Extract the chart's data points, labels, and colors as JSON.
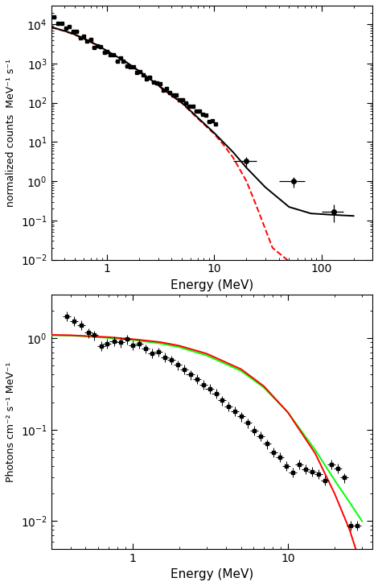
{
  "top_plot": {
    "ylabel": "normalized counts  MeV⁻¹ s⁻¹",
    "xlabel": "Energy (MeV)",
    "xlim": [
      0.3,
      300
    ],
    "ylim": [
      0.01,
      30000.0
    ],
    "fit_black_x": [
      0.3,
      0.4,
      0.5,
      0.6,
      0.8,
      1.0,
      1.5,
      2.0,
      3.0,
      5.0,
      7.0,
      10.0,
      15.0,
      20.0,
      30.0,
      50.0,
      80.0,
      120.0,
      200.0
    ],
    "fit_black_y": [
      8500,
      6800,
      5500,
      4400,
      3000,
      2100,
      1100,
      640,
      280,
      100,
      42,
      17,
      5.5,
      2.2,
      0.7,
      0.22,
      0.15,
      0.14,
      0.13
    ],
    "fit_red_x": [
      0.3,
      0.4,
      0.5,
      0.6,
      0.8,
      1.0,
      1.5,
      2.0,
      3.0,
      5.0,
      7.0,
      10.0,
      12.0,
      15.0,
      20.0,
      25.0,
      35.0,
      50.0
    ],
    "fit_red_y": [
      8400,
      6700,
      5400,
      4300,
      2950,
      2050,
      1080,
      620,
      270,
      97,
      40,
      16,
      9.0,
      4.0,
      1.0,
      0.22,
      0.02,
      0.009
    ]
  },
  "bottom_plot": {
    "ylabel": "Photons cm⁻² s⁻¹ MeV⁻¹",
    "xlabel": "Energy (MeV)",
    "xlim": [
      0.3,
      35
    ],
    "ylim": [
      0.005,
      3
    ],
    "fit_red_x": [
      0.3,
      0.4,
      0.5,
      0.7,
      1.0,
      1.5,
      2.0,
      3.0,
      5.0,
      7.0,
      10.0,
      15.0,
      20.0,
      25.0,
      30.0
    ],
    "fit_red_y": [
      1.09,
      1.08,
      1.06,
      1.03,
      0.98,
      0.91,
      0.83,
      0.68,
      0.46,
      0.3,
      0.155,
      0.055,
      0.02,
      0.008,
      0.003
    ],
    "fit_green_x": [
      0.3,
      0.4,
      0.5,
      0.7,
      1.0,
      1.5,
      2.0,
      3.0,
      5.0,
      7.0,
      10.0,
      15.0,
      20.0,
      25.0,
      30.0
    ],
    "fit_green_y": [
      1.08,
      1.07,
      1.05,
      1.01,
      0.96,
      0.88,
      0.8,
      0.65,
      0.44,
      0.29,
      0.155,
      0.06,
      0.028,
      0.016,
      0.01
    ]
  }
}
